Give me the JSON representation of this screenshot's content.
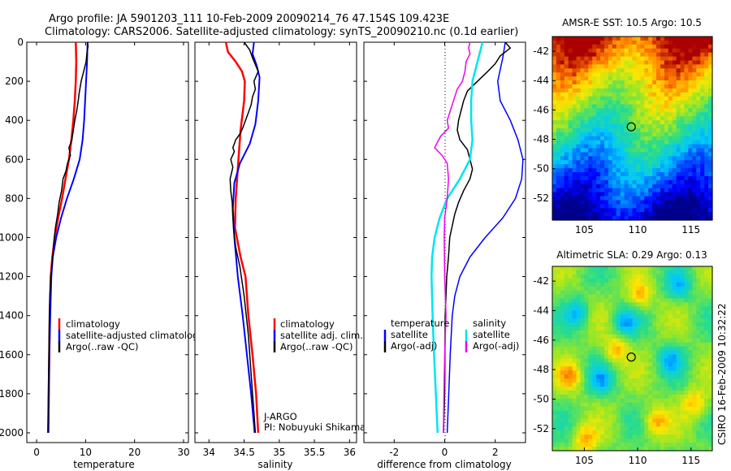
{
  "title": {
    "line1": "Argo profile: JA 5901203_111 10-Feb-2009 20090214_76 47.154S 109.423E",
    "line2": "Climatology: CARS2006. Satellite-adjusted climatology: synTS_20090210.nc (0.1d earlier)"
  },
  "watermark": "CSIRO 16-Feb-2009 10:32:22",
  "colors": {
    "climatology": "#ff0000",
    "satellite": "#0000ff",
    "argo": "#000000",
    "cyan": "#00e5ee",
    "magenta": "#ee00ee"
  },
  "chart_data": [
    {
      "type": "line",
      "panel": "temperature",
      "xlabel": "temperature",
      "xlim": [
        -2,
        31
      ],
      "ylim": [
        2050,
        0
      ],
      "xticks": [
        "0",
        "10",
        "20",
        "30"
      ],
      "yticks": [
        "0",
        "200",
        "400",
        "600",
        "800",
        "1000",
        "1200",
        "1400",
        "1600",
        "1800",
        "2000"
      ],
      "legend": [
        "climatology",
        "satellite-adjusted climatolog",
        "Argo(..raw -QC)"
      ],
      "series": [
        {
          "name": "climatology",
          "color": "#ff0000",
          "width": 2.5,
          "points": [
            [
              8.0,
              0
            ],
            [
              8.1,
              100
            ],
            [
              8.0,
              200
            ],
            [
              7.8,
              300
            ],
            [
              7.5,
              400
            ],
            [
              7.1,
              500
            ],
            [
              6.6,
              600
            ],
            [
              5.9,
              700
            ],
            [
              5.2,
              800
            ],
            [
              4.4,
              900
            ],
            [
              3.7,
              1000
            ],
            [
              3.2,
              1100
            ],
            [
              2.9,
              1200
            ],
            [
              2.7,
              1400
            ],
            [
              2.6,
              1600
            ],
            [
              2.5,
              1800
            ],
            [
              2.4,
              2000
            ]
          ]
        },
        {
          "name": "satellite-adjusted climatolog",
          "color": "#0000ff",
          "width": 2,
          "points": [
            [
              10.4,
              0
            ],
            [
              10.3,
              100
            ],
            [
              10.1,
              200
            ],
            [
              9.9,
              300
            ],
            [
              9.7,
              400
            ],
            [
              9.4,
              500
            ],
            [
              8.8,
              600
            ],
            [
              7.6,
              700
            ],
            [
              6.2,
              800
            ],
            [
              5.0,
              900
            ],
            [
              4.0,
              1000
            ],
            [
              3.3,
              1100
            ],
            [
              3.0,
              1200
            ],
            [
              2.8,
              1400
            ],
            [
              2.6,
              1600
            ],
            [
              2.5,
              1800
            ],
            [
              2.4,
              2000
            ]
          ]
        },
        {
          "name": "Argo(..raw -QC)",
          "color": "#000000",
          "width": 1.5,
          "points": [
            [
              10.4,
              0
            ],
            [
              10.5,
              20
            ],
            [
              10.3,
              50
            ],
            [
              10.1,
              100
            ],
            [
              9.6,
              150
            ],
            [
              9.1,
              200
            ],
            [
              8.7,
              260
            ],
            [
              8.5,
              300
            ],
            [
              8.2,
              350
            ],
            [
              7.8,
              400
            ],
            [
              7.5,
              450
            ],
            [
              7.2,
              500
            ],
            [
              6.6,
              540
            ],
            [
              6.9,
              580
            ],
            [
              6.3,
              620
            ],
            [
              6.0,
              660
            ],
            [
              5.4,
              700
            ],
            [
              5.1,
              760
            ],
            [
              4.6,
              820
            ],
            [
              4.3,
              880
            ],
            [
              3.9,
              940
            ],
            [
              3.6,
              1000
            ],
            [
              3.3,
              1100
            ],
            [
              2.9,
              1200
            ],
            [
              2.7,
              1300
            ],
            [
              2.6,
              1400
            ],
            [
              2.5,
              1600
            ],
            [
              2.4,
              1800
            ],
            [
              2.3,
              2000
            ]
          ]
        }
      ]
    },
    {
      "type": "line",
      "panel": "salinity",
      "xlabel": "salinity",
      "xlim": [
        33.8,
        36.1
      ],
      "ylim": [
        2050,
        0
      ],
      "xticks": [
        "34",
        "34.5",
        "35",
        "35.5",
        "36"
      ],
      "legend": [
        "climatology",
        "satellite adj. clim.",
        "Argo(..raw -QC)"
      ],
      "annotation": [
        "J-ARGO",
        "PI: Nobuyuki Shikama"
      ],
      "series": [
        {
          "name": "climatology",
          "color": "#ff0000",
          "width": 2.5,
          "points": [
            [
              34.24,
              0
            ],
            [
              34.27,
              50
            ],
            [
              34.38,
              100
            ],
            [
              34.47,
              150
            ],
            [
              34.51,
              200
            ],
            [
              34.5,
              300
            ],
            [
              34.45,
              450
            ],
            [
              34.42,
              600
            ],
            [
              34.38,
              800
            ],
            [
              34.37,
              950
            ],
            [
              34.45,
              1100
            ],
            [
              34.52,
              1200
            ],
            [
              34.56,
              1400
            ],
            [
              34.62,
              1600
            ],
            [
              34.67,
              1800
            ],
            [
              34.7,
              2000
            ]
          ]
        },
        {
          "name": "satellite adj. clim.",
          "color": "#0000ff",
          "width": 2,
          "points": [
            [
              34.64,
              0
            ],
            [
              34.62,
              60
            ],
            [
              34.68,
              120
            ],
            [
              34.72,
              180
            ],
            [
              34.7,
              300
            ],
            [
              34.66,
              420
            ],
            [
              34.58,
              520
            ],
            [
              34.44,
              620
            ],
            [
              34.36,
              720
            ],
            [
              34.34,
              850
            ],
            [
              34.36,
              1000
            ],
            [
              34.41,
              1200
            ],
            [
              34.48,
              1400
            ],
            [
              34.54,
              1600
            ],
            [
              34.6,
              1800
            ],
            [
              34.65,
              2000
            ]
          ]
        },
        {
          "name": "Argo(..raw -QC)",
          "color": "#000000",
          "width": 1.5,
          "points": [
            [
              34.5,
              0
            ],
            [
              34.58,
              40
            ],
            [
              34.62,
              80
            ],
            [
              34.7,
              150
            ],
            [
              34.64,
              200
            ],
            [
              34.66,
              240
            ],
            [
              34.62,
              280
            ],
            [
              34.6,
              320
            ],
            [
              34.56,
              360
            ],
            [
              34.52,
              400
            ],
            [
              34.48,
              440
            ],
            [
              34.44,
              470
            ],
            [
              34.38,
              500
            ],
            [
              34.34,
              540
            ],
            [
              34.36,
              560
            ],
            [
              34.31,
              600
            ],
            [
              34.34,
              640
            ],
            [
              34.3,
              700
            ],
            [
              34.31,
              760
            ],
            [
              34.33,
              820
            ],
            [
              34.34,
              900
            ],
            [
              34.35,
              960
            ],
            [
              34.38,
              1050
            ],
            [
              34.44,
              1150
            ],
            [
              34.5,
              1300
            ],
            [
              34.56,
              1500
            ],
            [
              34.6,
              1700
            ],
            [
              34.64,
              1900
            ],
            [
              34.66,
              2000
            ]
          ]
        }
      ]
    },
    {
      "type": "line",
      "panel": "difference",
      "xlabel": "difference from climatology",
      "xlim": [
        -3.2,
        3.2
      ],
      "ylim": [
        2050,
        0
      ],
      "xticks": [
        "-2",
        "0",
        "2"
      ],
      "legend": {
        "temperature_header": "temperature",
        "salinity_header": "salinity",
        "temperature": [
          "satellite",
          "Argo(-adj)"
        ],
        "salinity": [
          "satellite",
          "Argo(-adj)"
        ]
      },
      "series": [
        {
          "name": "temperature satellite",
          "color": "#0000ff",
          "width": 1.5,
          "points": [
            [
              2.4,
              0
            ],
            [
              2.3,
              80
            ],
            [
              2.1,
              200
            ],
            [
              2.2,
              300
            ],
            [
              2.6,
              400
            ],
            [
              2.9,
              500
            ],
            [
              3.1,
              600
            ],
            [
              3.05,
              700
            ],
            [
              2.8,
              800
            ],
            [
              2.3,
              900
            ],
            [
              1.6,
              1000
            ],
            [
              1.0,
              1100
            ],
            [
              0.6,
              1200
            ],
            [
              0.4,
              1300
            ],
            [
              0.3,
              1400
            ],
            [
              0.22,
              1600
            ],
            [
              0.16,
              1800
            ],
            [
              0.1,
              2000
            ]
          ]
        },
        {
          "name": "temperature Argo(-adj)",
          "color": "#000000",
          "width": 1.5,
          "points": [
            [
              2.4,
              0
            ],
            [
              2.6,
              30
            ],
            [
              2.2,
              70
            ],
            [
              2.0,
              110
            ],
            [
              1.7,
              150
            ],
            [
              1.3,
              200
            ],
            [
              0.9,
              250
            ],
            [
              0.75,
              300
            ],
            [
              0.65,
              350
            ],
            [
              0.55,
              400
            ],
            [
              0.5,
              450
            ],
            [
              0.6,
              500
            ],
            [
              0.9,
              550
            ],
            [
              1.0,
              600
            ],
            [
              1.1,
              650
            ],
            [
              1.0,
              700
            ],
            [
              0.75,
              760
            ],
            [
              0.55,
              820
            ],
            [
              0.4,
              880
            ],
            [
              0.3,
              940
            ],
            [
              0.2,
              1000
            ],
            [
              0.15,
              1100
            ],
            [
              0.08,
              1200
            ],
            [
              0.05,
              1300
            ],
            [
              0.02,
              1400
            ],
            [
              0.01,
              1600
            ],
            [
              0.0,
              1800
            ],
            [
              -0.05,
              2000
            ]
          ]
        },
        {
          "name": "salinity satellite",
          "color": "#00e5ee",
          "width": 2.5,
          "points": [
            [
              1.5,
              0
            ],
            [
              1.3,
              100
            ],
            [
              1.1,
              200
            ],
            [
              1.05,
              300
            ],
            [
              1.05,
              400
            ],
            [
              1.1,
              500
            ],
            [
              1.0,
              600
            ],
            [
              0.6,
              700
            ],
            [
              0.1,
              800
            ],
            [
              -0.2,
              900
            ],
            [
              -0.4,
              1000
            ],
            [
              -0.5,
              1100
            ],
            [
              -0.52,
              1200
            ],
            [
              -0.48,
              1400
            ],
            [
              -0.42,
              1600
            ],
            [
              -0.35,
              1800
            ],
            [
              -0.28,
              2000
            ]
          ]
        },
        {
          "name": "salinity Argo(-adj)",
          "color": "#ee00ee",
          "width": 1.5,
          "points": [
            [
              1.0,
              0
            ],
            [
              0.95,
              30
            ],
            [
              1.0,
              60
            ],
            [
              0.85,
              100
            ],
            [
              0.8,
              150
            ],
            [
              0.7,
              200
            ],
            [
              0.5,
              240
            ],
            [
              0.4,
              280
            ],
            [
              0.3,
              320
            ],
            [
              0.2,
              360
            ],
            [
              0.1,
              400
            ],
            [
              0.15,
              440
            ],
            [
              -0.15,
              480
            ],
            [
              -0.4,
              540
            ],
            [
              -0.1,
              580
            ],
            [
              0.1,
              620
            ],
            [
              0.15,
              700
            ],
            [
              0.1,
              800
            ],
            [
              0.0,
              900
            ],
            [
              -0.02,
              1000
            ],
            [
              0.0,
              1200
            ],
            [
              0.05,
              1400
            ],
            [
              0.0,
              1600
            ],
            [
              -0.03,
              1800
            ],
            [
              -0.05,
              2000
            ]
          ]
        }
      ]
    },
    {
      "type": "heatmap",
      "panel": "sst_map",
      "title": "AMSR-E SST: 10.5 Argo: 10.5",
      "xlim": [
        102,
        117
      ],
      "ylim": [
        -53.5,
        -41
      ],
      "xticks": [
        "105",
        "110",
        "115"
      ],
      "yticks": [
        "-42",
        "-44",
        "-46",
        "-48",
        "-50",
        "-52"
      ],
      "marker": [
        109.4,
        -47.15
      ]
    },
    {
      "type": "heatmap",
      "panel": "sla_map",
      "title": "Altimetric SLA: 0.29 Argo: 0.13",
      "xlim": [
        102,
        117
      ],
      "ylim": [
        -53.5,
        -41
      ],
      "xticks": [
        "105",
        "110",
        "115"
      ],
      "yticks": [
        "-42",
        "-44",
        "-46",
        "-48",
        "-50",
        "-52"
      ],
      "marker": [
        109.4,
        -47.15
      ]
    }
  ]
}
